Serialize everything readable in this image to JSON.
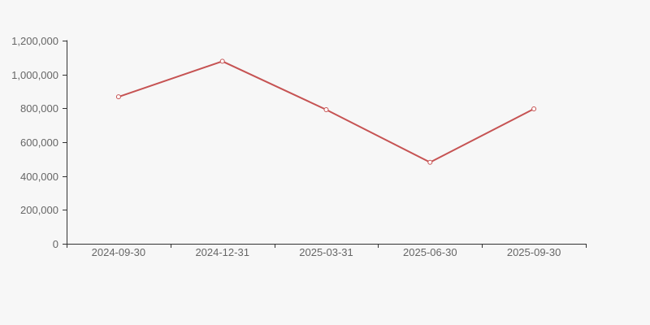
{
  "chart_data": {
    "type": "line",
    "title": "",
    "xlabel": "",
    "ylabel": "",
    "categories": [
      "2024-09-30",
      "2024-12-31",
      "2025-03-31",
      "2025-06-30",
      "2025-09-30"
    ],
    "values": [
      868000,
      1078000,
      792000,
      481000,
      797000
    ],
    "ylim": [
      0,
      1200000
    ],
    "yticks": [
      0,
      200000,
      400000,
      600000,
      800000,
      1000000,
      1200000
    ],
    "ytick_labels": [
      "0",
      "200,000",
      "400,000",
      "600,000",
      "800,000",
      "1,000,000",
      "1,200,000"
    ],
    "grid": false,
    "legend": false,
    "marker": "open-circle",
    "style": {
      "background": "#f7f7f7",
      "line_color": "#c65353",
      "marker_fill": "#ffffff",
      "axis_color": "#333333",
      "label_color": "#666666"
    }
  }
}
